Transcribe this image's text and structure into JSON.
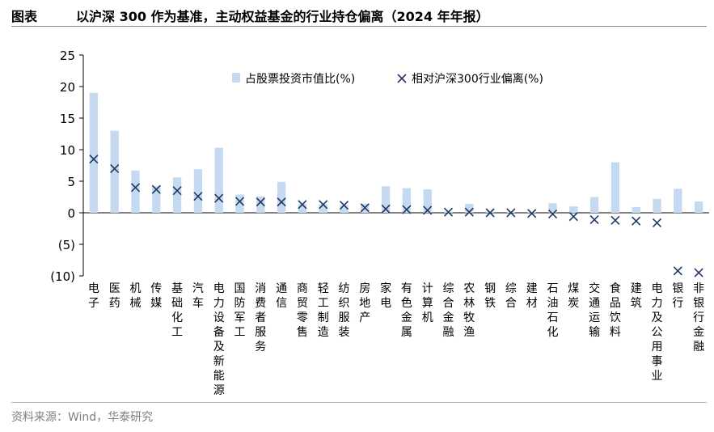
{
  "header": {
    "label": "图表",
    "title": "以沪深 300 作为基准，主动权益基金的行业持仓偏离（2024 年年报）"
  },
  "source": "资料来源：Wind，华泰研究",
  "colors": {
    "bar": "#c5d9f1",
    "marker": "#1f3864",
    "underline": "#17a8c7",
    "axis": "#000000"
  },
  "chart_data": {
    "type": "bar",
    "title": "以沪深 300 作为基准，主动权益基金的行业持仓偏离（2024 年年报）",
    "ylim": [
      -10,
      25
    ],
    "yticks": [
      25,
      20,
      15,
      10,
      5,
      0,
      -5,
      -10
    ],
    "ytick_labels": [
      "25",
      "20",
      "15",
      "10",
      "5",
      "0",
      "(5)",
      "(10)"
    ],
    "legend_position": "top-right",
    "categories": [
      "电子",
      "医药",
      "机械",
      "传媒",
      "基础化工",
      "汽车",
      "电力设备及新能源",
      "国防军工",
      "消费者服务",
      "通信",
      "商贸零售",
      "轻工制造",
      "纺织服装",
      "房地产",
      "家电",
      "有色金属",
      "计算机",
      "综合金融",
      "农林牧渔",
      "钢铁",
      "综合",
      "建材",
      "石油石化",
      "煤炭",
      "交通运输",
      "食品饮料",
      "建筑",
      "电力及公用事业",
      "银行",
      "非银行金融"
    ],
    "series": [
      {
        "name": "占股票投资市值比(%)",
        "type": "bar",
        "values": [
          19.0,
          13.0,
          6.7,
          4.2,
          5.6,
          6.9,
          10.3,
          2.9,
          2.6,
          4.9,
          1.4,
          1.4,
          1.2,
          1.4,
          4.2,
          3.9,
          3.7,
          0.2,
          1.4,
          0.2,
          0.1,
          0.1,
          1.5,
          1.0,
          2.5,
          8.0,
          0.9,
          2.2,
          3.8,
          1.8
        ]
      },
      {
        "name": "相对沪深300行业偏离(%)",
        "type": "scatter",
        "values": [
          8.5,
          7.0,
          4.0,
          3.7,
          3.5,
          2.6,
          2.3,
          1.8,
          1.7,
          1.7,
          1.3,
          1.3,
          1.2,
          0.8,
          0.6,
          0.5,
          0.4,
          0.1,
          0.1,
          0.0,
          0.0,
          -0.1,
          -0.2,
          -0.6,
          -1.1,
          -1.2,
          -1.3,
          -1.6,
          -9.2,
          -9.5
        ]
      }
    ]
  }
}
